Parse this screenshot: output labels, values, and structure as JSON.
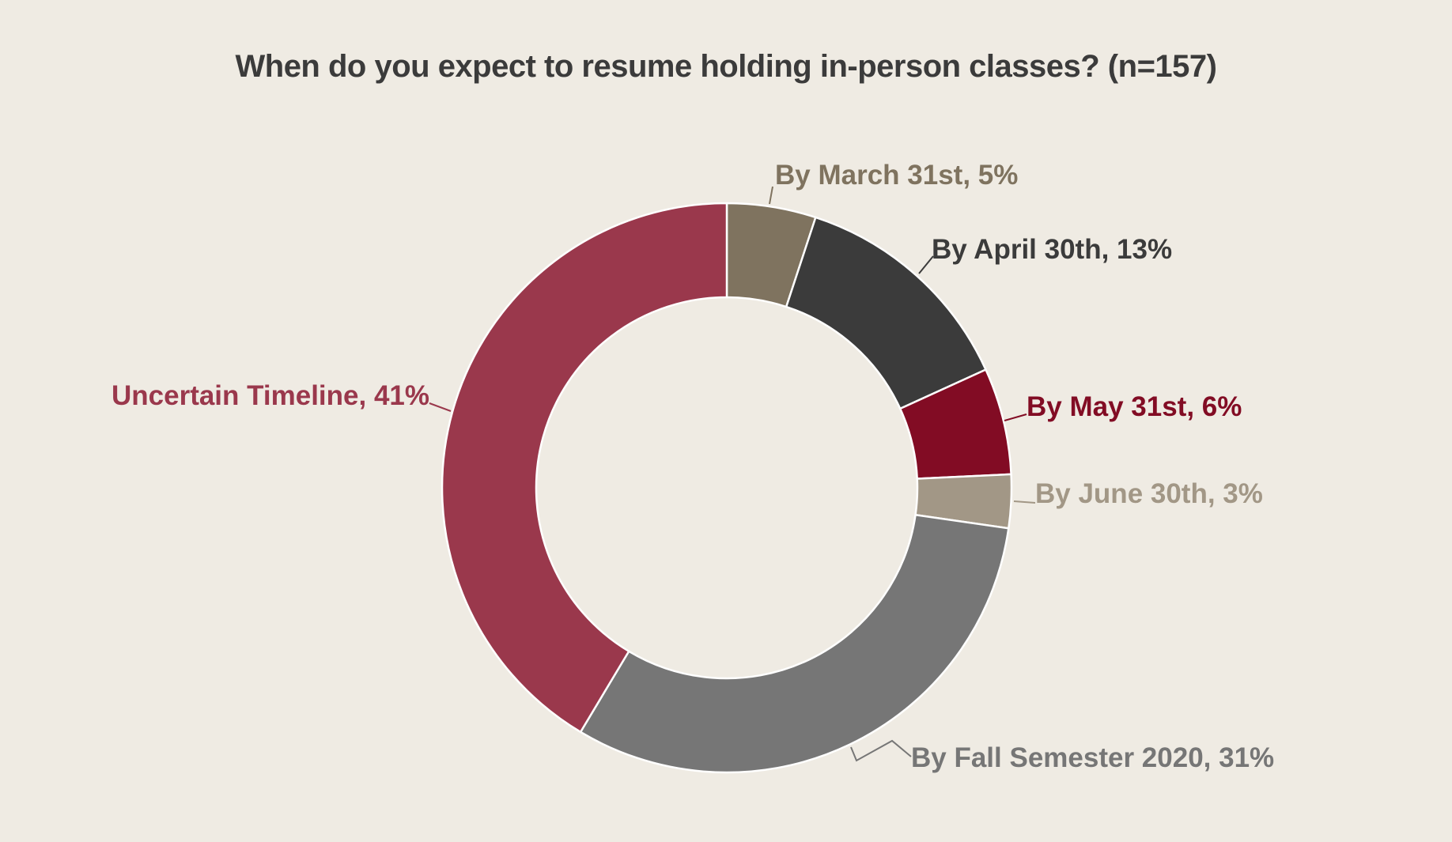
{
  "chart_data": {
    "type": "pie",
    "title": "When do you expect to resume holding in-person classes? (n=157)",
    "slices": [
      {
        "name": "By March 31st",
        "value": 5,
        "label": "By March 31st, 5%",
        "color": "#7f735f"
      },
      {
        "name": "By April 30th",
        "value": 13,
        "label": "By April 30th, 13%",
        "color": "#3b3b3b"
      },
      {
        "name": "By May 31st",
        "value": 6,
        "label": "By May 31st, 6%",
        "color": "#820c24"
      },
      {
        "name": "By June 30th",
        "value": 3,
        "label": "By June 30th, 3%",
        "color": "#a29786"
      },
      {
        "name": "By Fall Semester 2020",
        "value": 31,
        "label": "By Fall Semester 2020, 31%",
        "color": "#767676"
      },
      {
        "name": "Uncertain Timeline",
        "value": 41,
        "label": "Uncertain Timeline, 41%",
        "color": "#9a384c"
      }
    ],
    "style": "donut",
    "start_angle": "12 o'clock",
    "direction": "clockwise",
    "legend": "none",
    "background": "#efebe3"
  }
}
